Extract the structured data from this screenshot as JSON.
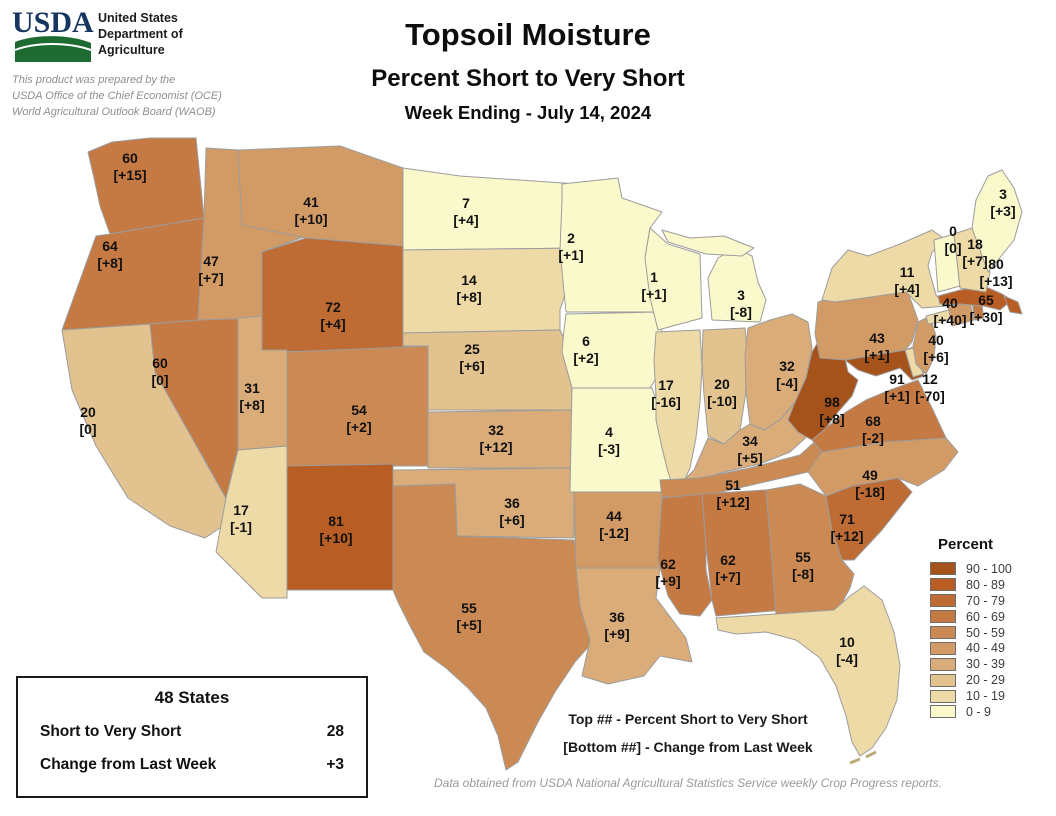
{
  "header": {
    "logo_text": "USDA",
    "org_lines": [
      "United States",
      "Department of",
      "Agriculture"
    ],
    "prepared_by": [
      "This product was prepared by the",
      "USDA Office of the Chief Economist (OCE)",
      "World Agricultural Outlook Board (WAOB)"
    ],
    "title": "Topsoil Moisture",
    "subtitle": "Percent Short to Very Short",
    "week": "Week Ending - July 14, 2024"
  },
  "summary_box": {
    "title": "48 States",
    "rows": [
      {
        "label": "Short to Very Short",
        "value": "28"
      },
      {
        "label": "Change from Last Week",
        "value": "+3"
      }
    ]
  },
  "notes": {
    "line1": "Top ## - Percent Short to Very Short",
    "line2": "[Bottom ##] - Change from Last Week"
  },
  "footnote": "Data obtained from USDA National Agricultural Statistics Service weekly Crop Progress reports.",
  "chart_data": {
    "type": "choropleth",
    "title": "Topsoil Moisture",
    "subtitle": "Percent Short to Very Short",
    "period": "Week Ending - July 14, 2024",
    "value_meaning": "percent short to very short",
    "bracket_meaning": "change from last week",
    "legend": {
      "title": "Percent",
      "buckets": [
        {
          "range": "90 - 100",
          "color": "#A6521B"
        },
        {
          "range": "80 - 89",
          "color": "#B85E24"
        },
        {
          "range": "70 - 79",
          "color": "#BE6B34"
        },
        {
          "range": "60 - 69",
          "color": "#C57943"
        },
        {
          "range": "50 - 59",
          "color": "#CB8A54"
        },
        {
          "range": "40 - 49",
          "color": "#D29B66"
        },
        {
          "range": "30 - 39",
          "color": "#D9AC79"
        },
        {
          "range": "20 - 29",
          "color": "#E2C28F"
        },
        {
          "range": "10 - 19",
          "color": "#EDDAA6"
        },
        {
          "range": "0 - 9",
          "color": "#FAF9CC"
        }
      ]
    },
    "states": [
      {
        "id": "WA",
        "value": 60,
        "change": "+15"
      },
      {
        "id": "OR",
        "value": 64,
        "change": "+8"
      },
      {
        "id": "CA",
        "value": 20,
        "change": "0"
      },
      {
        "id": "NV",
        "value": 60,
        "change": "0"
      },
      {
        "id": "ID",
        "value": 47,
        "change": "+7"
      },
      {
        "id": "MT",
        "value": 41,
        "change": "+10"
      },
      {
        "id": "WY",
        "value": 72,
        "change": "+4"
      },
      {
        "id": "UT",
        "value": 31,
        "change": "+8"
      },
      {
        "id": "CO",
        "value": 54,
        "change": "+2"
      },
      {
        "id": "AZ",
        "value": 17,
        "change": "-1"
      },
      {
        "id": "NM",
        "value": 81,
        "change": "+10"
      },
      {
        "id": "ND",
        "value": 7,
        "change": "+4"
      },
      {
        "id": "SD",
        "value": 14,
        "change": "+8"
      },
      {
        "id": "NE",
        "value": 25,
        "change": "+6"
      },
      {
        "id": "KS",
        "value": 32,
        "change": "+12"
      },
      {
        "id": "OK",
        "value": 36,
        "change": "+6"
      },
      {
        "id": "TX",
        "value": 55,
        "change": "+5"
      },
      {
        "id": "MN",
        "value": 2,
        "change": "+1"
      },
      {
        "id": "IA",
        "value": 6,
        "change": "+2"
      },
      {
        "id": "MO",
        "value": 4,
        "change": "-3"
      },
      {
        "id": "AR",
        "value": 44,
        "change": "-12"
      },
      {
        "id": "LA",
        "value": 36,
        "change": "+9"
      },
      {
        "id": "WI",
        "value": 1,
        "change": "+1"
      },
      {
        "id": "IL",
        "value": 17,
        "change": "-16"
      },
      {
        "id": "IN",
        "value": 20,
        "change": "-10"
      },
      {
        "id": "MI",
        "value": 3,
        "change": "-8"
      },
      {
        "id": "OH",
        "value": 32,
        "change": "-4"
      },
      {
        "id": "KY",
        "value": 34,
        "change": "+5"
      },
      {
        "id": "TN",
        "value": 51,
        "change": "+12"
      },
      {
        "id": "MS",
        "value": 62,
        "change": "+9"
      },
      {
        "id": "AL",
        "value": 62,
        "change": "+7"
      },
      {
        "id": "GA",
        "value": 55,
        "change": "-8"
      },
      {
        "id": "FL",
        "value": 10,
        "change": "-4"
      },
      {
        "id": "SC",
        "value": 71,
        "change": "+12"
      },
      {
        "id": "NC",
        "value": 49,
        "change": "-18"
      },
      {
        "id": "VA",
        "value": 68,
        "change": "-2"
      },
      {
        "id": "WV",
        "value": 98,
        "change": "+8"
      },
      {
        "id": "MD",
        "value": 91,
        "change": "+1"
      },
      {
        "id": "DE",
        "value": 12,
        "change": "-70"
      },
      {
        "id": "PA",
        "value": 43,
        "change": "+1"
      },
      {
        "id": "NJ",
        "value": 40,
        "change": "+6"
      },
      {
        "id": "NY",
        "value": 11,
        "change": "+4"
      },
      {
        "id": "CT",
        "value": 40,
        "change": "+40"
      },
      {
        "id": "RI",
        "value": 65,
        "change": "+30"
      },
      {
        "id": "MA",
        "value": 80,
        "change": "+13"
      },
      {
        "id": "VT",
        "value": 0,
        "change": "0"
      },
      {
        "id": "NH",
        "value": 18,
        "change": "+7"
      },
      {
        "id": "ME",
        "value": 3,
        "change": "+3"
      }
    ]
  }
}
